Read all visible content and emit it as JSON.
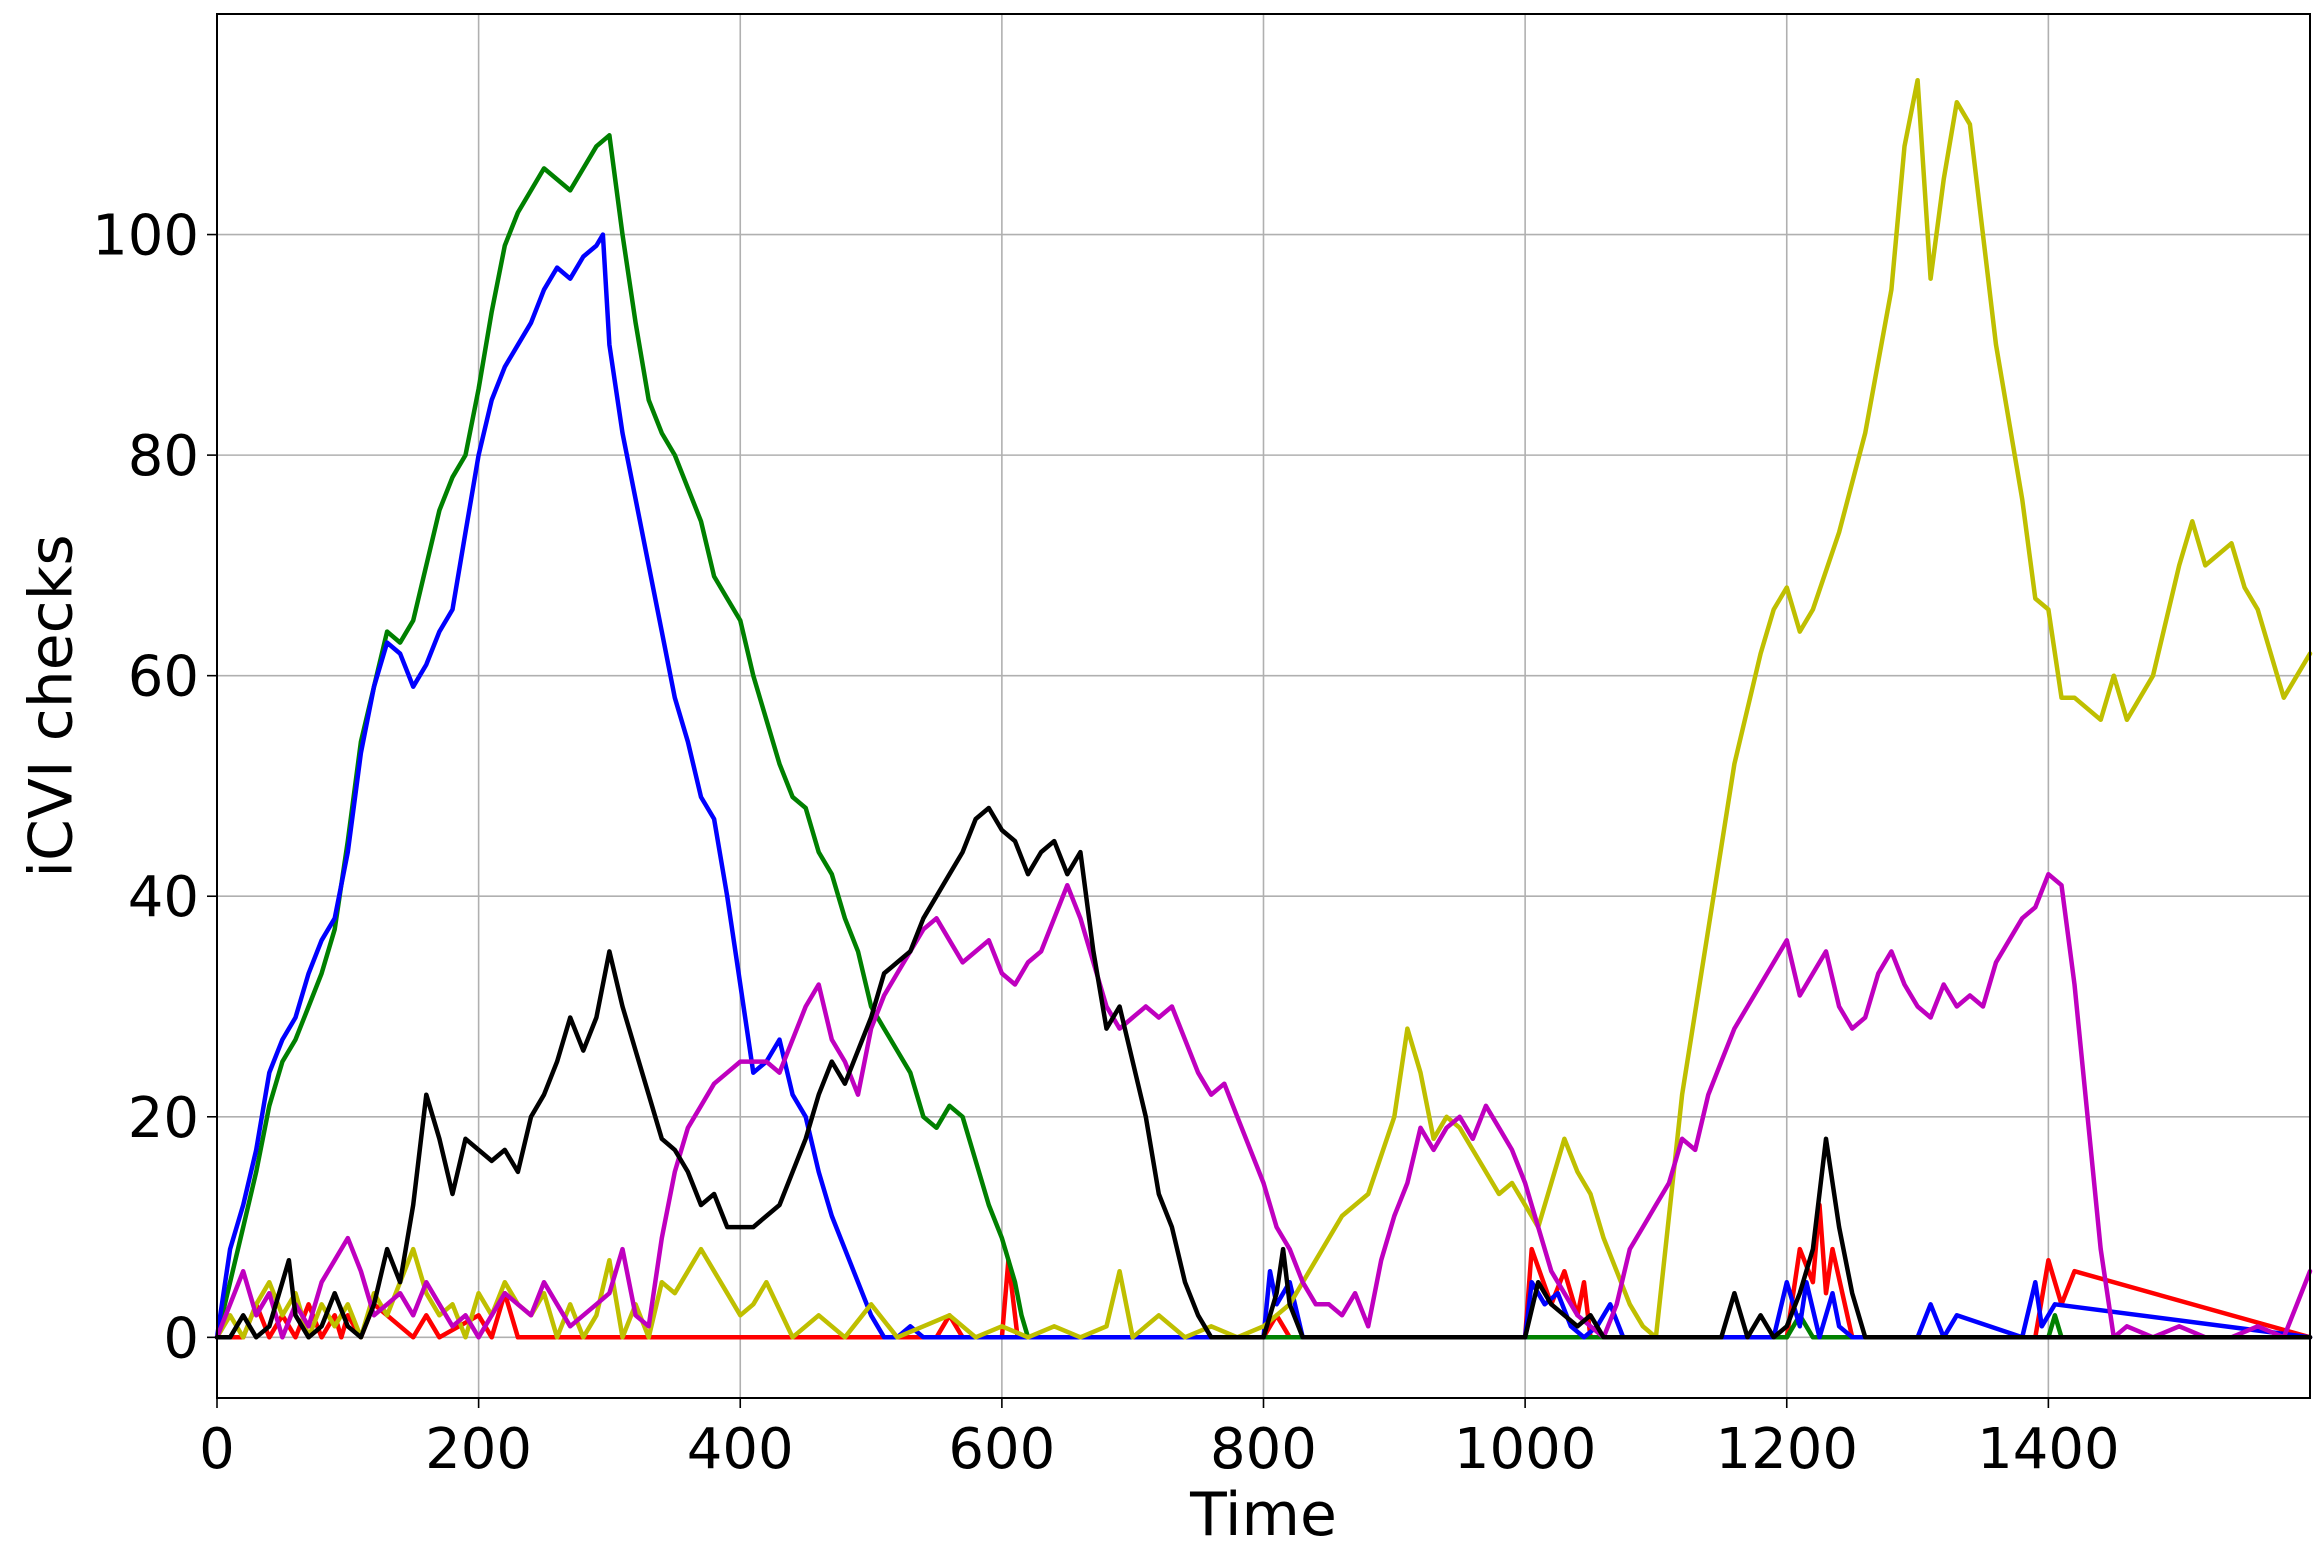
{
  "chart_data": {
    "type": "line",
    "xlabel": "Time",
    "ylabel": "iCVI checks",
    "xlim": [
      0,
      1600
    ],
    "ylim": [
      -5.5,
      120
    ],
    "xticks": [
      0,
      200,
      400,
      600,
      800,
      1000,
      1200,
      1400
    ],
    "yticks": [
      0,
      20,
      40,
      60,
      80,
      100
    ],
    "grid": true,
    "legend": "none",
    "series": [
      {
        "color": "#ff0000",
        "x": [
          0,
          20,
          30,
          40,
          50,
          60,
          70,
          80,
          90,
          95,
          100,
          110,
          120,
          150,
          160,
          170,
          200,
          210,
          220,
          230,
          300,
          400,
          550,
          560,
          570,
          600,
          605,
          612,
          620,
          800,
          810,
          820,
          830,
          1000,
          1005,
          1020,
          1030,
          1040,
          1045,
          1050,
          1060,
          1200,
          1210,
          1220,
          1225,
          1230,
          1235,
          1250,
          1390,
          1400,
          1410,
          1420,
          1600
        ],
        "y": [
          0,
          0,
          3,
          0,
          2,
          0,
          3,
          0,
          2,
          0,
          2,
          0,
          3,
          0,
          2,
          0,
          2,
          0,
          4,
          0,
          0,
          0,
          0,
          2,
          0,
          0,
          7,
          0,
          0,
          0,
          2,
          0,
          0,
          0,
          8,
          3,
          6,
          2,
          5,
          0,
          0,
          0,
          8,
          5,
          12,
          4,
          8,
          0,
          0,
          7,
          3,
          6,
          0
        ]
      },
      {
        "color": "#008000",
        "x": [
          0,
          10,
          20,
          30,
          40,
          50,
          60,
          70,
          80,
          90,
          100,
          110,
          120,
          130,
          140,
          150,
          160,
          170,
          180,
          190,
          200,
          210,
          220,
          230,
          240,
          250,
          260,
          270,
          280,
          290,
          300,
          310,
          320,
          330,
          340,
          350,
          360,
          370,
          380,
          390,
          400,
          410,
          420,
          430,
          440,
          450,
          460,
          470,
          480,
          490,
          500,
          510,
          520,
          530,
          540,
          550,
          560,
          570,
          580,
          590,
          600,
          610,
          615,
          620,
          625,
          800,
          1200,
          1210,
          1220,
          1400,
          1405,
          1410,
          1600
        ],
        "y": [
          0,
          5,
          10,
          15,
          21,
          25,
          27,
          30,
          33,
          37,
          45,
          54,
          59,
          64,
          63,
          65,
          70,
          75,
          78,
          80,
          86,
          93,
          99,
          102,
          104,
          106,
          105,
          104,
          106,
          108,
          109,
          100,
          92,
          85,
          82,
          80,
          77,
          74,
          69,
          67,
          65,
          60,
          56,
          52,
          49,
          48,
          44,
          42,
          38,
          35,
          30,
          28,
          26,
          24,
          20,
          19,
          21,
          20,
          16,
          12,
          9,
          5,
          2,
          0,
          0,
          0,
          0,
          2,
          0,
          0,
          2,
          0,
          0
        ]
      },
      {
        "color": "#0000ff",
        "x": [
          0,
          10,
          20,
          30,
          40,
          50,
          60,
          70,
          80,
          90,
          100,
          110,
          120,
          130,
          140,
          150,
          160,
          170,
          180,
          190,
          200,
          210,
          220,
          230,
          240,
          250,
          260,
          270,
          280,
          290,
          295,
          300,
          310,
          320,
          330,
          340,
          350,
          360,
          370,
          380,
          390,
          400,
          410,
          420,
          430,
          440,
          450,
          460,
          470,
          480,
          490,
          500,
          510,
          520,
          530,
          540,
          600,
          800,
          805,
          810,
          820,
          830,
          1000,
          1005,
          1015,
          1025,
          1035,
          1045,
          1055,
          1065,
          1075,
          1100,
          1190,
          1200,
          1210,
          1215,
          1225,
          1235,
          1240,
          1250,
          1300,
          1310,
          1320,
          1330,
          1380,
          1390,
          1395,
          1405,
          1600
        ],
        "y": [
          0,
          8,
          12,
          17,
          24,
          27,
          29,
          33,
          36,
          38,
          44,
          53,
          59,
          63,
          62,
          59,
          61,
          64,
          66,
          73,
          80,
          85,
          88,
          90,
          92,
          95,
          97,
          96,
          98,
          99,
          100,
          90,
          82,
          76,
          70,
          64,
          58,
          54,
          49,
          47,
          40,
          32,
          24,
          25,
          27,
          22,
          20,
          15,
          11,
          8,
          5,
          2,
          0,
          0,
          1,
          0,
          0,
          0,
          6,
          3,
          5,
          0,
          0,
          5,
          3,
          4,
          1,
          0,
          1,
          3,
          0,
          0,
          0,
          5,
          1,
          5,
          0,
          4,
          1,
          0,
          0,
          3,
          0,
          2,
          0,
          5,
          1,
          3,
          0
        ]
      },
      {
        "color": "#bfbf00",
        "x": [
          0,
          10,
          20,
          30,
          40,
          50,
          60,
          70,
          80,
          90,
          100,
          110,
          120,
          130,
          140,
          150,
          160,
          170,
          180,
          190,
          200,
          210,
          220,
          230,
          240,
          250,
          260,
          270,
          280,
          290,
          300,
          310,
          320,
          330,
          340,
          350,
          360,
          370,
          380,
          390,
          400,
          410,
          420,
          440,
          460,
          480,
          500,
          520,
          540,
          560,
          580,
          600,
          620,
          640,
          660,
          680,
          690,
          700,
          720,
          740,
          760,
          780,
          800,
          820,
          840,
          860,
          880,
          900,
          910,
          920,
          930,
          940,
          950,
          960,
          970,
          980,
          990,
          1000,
          1010,
          1020,
          1030,
          1040,
          1050,
          1060,
          1070,
          1080,
          1090,
          1100,
          1110,
          1120,
          1140,
          1160,
          1180,
          1190,
          1200,
          1210,
          1220,
          1240,
          1260,
          1280,
          1290,
          1300,
          1310,
          1320,
          1330,
          1340,
          1360,
          1380,
          1390,
          1400,
          1410,
          1420,
          1440,
          1450,
          1460,
          1480,
          1500,
          1510,
          1520,
          1530,
          1540,
          1550,
          1560,
          1580,
          1590,
          1600
        ],
        "y": [
          0,
          2,
          0,
          3,
          5,
          2,
          4,
          0,
          3,
          1,
          3,
          0,
          4,
          2,
          5,
          8,
          4,
          2,
          3,
          0,
          4,
          2,
          5,
          3,
          2,
          4,
          0,
          3,
          0,
          2,
          7,
          0,
          3,
          0,
          5,
          4,
          6,
          8,
          6,
          4,
          2,
          3,
          5,
          0,
          2,
          0,
          3,
          0,
          1,
          2,
          0,
          1,
          0,
          1,
          0,
          1,
          6,
          0,
          2,
          0,
          1,
          0,
          1,
          3,
          7,
          11,
          13,
          20,
          28,
          24,
          18,
          20,
          19,
          17,
          15,
          13,
          14,
          12,
          10,
          14,
          18,
          15,
          13,
          9,
          6,
          3,
          1,
          0,
          11,
          22,
          37,
          52,
          62,
          66,
          68,
          64,
          66,
          73,
          82,
          95,
          108,
          114,
          96,
          105,
          112,
          110,
          90,
          76,
          67,
          66,
          58,
          58,
          56,
          60,
          56,
          60,
          70,
          74,
          70,
          71,
          72,
          68,
          66,
          58,
          60,
          62
        ]
      },
      {
        "color": "#bf00bf",
        "x": [
          0,
          10,
          20,
          30,
          40,
          50,
          60,
          70,
          80,
          90,
          100,
          110,
          120,
          130,
          140,
          150,
          160,
          170,
          180,
          190,
          200,
          210,
          220,
          230,
          240,
          250,
          260,
          270,
          280,
          290,
          300,
          310,
          320,
          330,
          340,
          350,
          360,
          370,
          380,
          390,
          400,
          410,
          420,
          430,
          440,
          450,
          460,
          470,
          480,
          490,
          500,
          510,
          520,
          530,
          540,
          550,
          560,
          570,
          580,
          590,
          600,
          610,
          620,
          630,
          640,
          650,
          660,
          670,
          680,
          690,
          700,
          710,
          720,
          730,
          740,
          750,
          760,
          770,
          780,
          790,
          800,
          810,
          820,
          830,
          840,
          850,
          860,
          870,
          880,
          890,
          900,
          910,
          920,
          930,
          940,
          950,
          960,
          970,
          980,
          990,
          1000,
          1010,
          1020,
          1030,
          1040,
          1050,
          1060,
          1070,
          1080,
          1090,
          1100,
          1110,
          1120,
          1130,
          1140,
          1150,
          1160,
          1170,
          1180,
          1190,
          1200,
          1210,
          1220,
          1230,
          1240,
          1250,
          1260,
          1270,
          1280,
          1290,
          1300,
          1310,
          1320,
          1330,
          1340,
          1350,
          1360,
          1370,
          1380,
          1390,
          1400,
          1410,
          1420,
          1430,
          1440,
          1450,
          1460,
          1480,
          1500,
          1520,
          1540,
          1560,
          1580,
          1590,
          1600
        ],
        "y": [
          0,
          3,
          6,
          2,
          4,
          0,
          3,
          1,
          5,
          7,
          9,
          6,
          2,
          3,
          4,
          2,
          5,
          3,
          1,
          2,
          0,
          2,
          4,
          3,
          2,
          5,
          3,
          1,
          2,
          3,
          4,
          8,
          2,
          1,
          9,
          15,
          19,
          21,
          23,
          24,
          25,
          25,
          25,
          24,
          27,
          30,
          32,
          27,
          25,
          22,
          28,
          31,
          33,
          35,
          37,
          38,
          36,
          34,
          35,
          36,
          33,
          32,
          34,
          35,
          38,
          41,
          38,
          34,
          30,
          28,
          29,
          30,
          29,
          30,
          27,
          24,
          22,
          23,
          20,
          17,
          14,
          10,
          8,
          5,
          3,
          3,
          2,
          4,
          1,
          7,
          11,
          14,
          19,
          17,
          19,
          20,
          18,
          21,
          19,
          17,
          14,
          10,
          6,
          4,
          2,
          1,
          0,
          3,
          8,
          10,
          12,
          14,
          18,
          17,
          22,
          25,
          28,
          30,
          32,
          34,
          36,
          31,
          33,
          35,
          30,
          28,
          29,
          33,
          35,
          32,
          30,
          29,
          32,
          30,
          31,
          30,
          34,
          36,
          38,
          39,
          42,
          41,
          32,
          20,
          8,
          0,
          1,
          0,
          1,
          0,
          0,
          1,
          0,
          3,
          6
        ]
      },
      {
        "color": "#000000",
        "x": [
          0,
          10,
          20,
          30,
          40,
          50,
          55,
          60,
          70,
          80,
          90,
          100,
          110,
          120,
          130,
          140,
          150,
          160,
          170,
          180,
          190,
          200,
          210,
          220,
          230,
          240,
          250,
          260,
          270,
          280,
          290,
          300,
          310,
          320,
          330,
          340,
          350,
          360,
          370,
          380,
          390,
          400,
          410,
          420,
          430,
          440,
          450,
          460,
          470,
          480,
          490,
          500,
          510,
          520,
          530,
          540,
          550,
          560,
          570,
          580,
          590,
          600,
          610,
          620,
          630,
          640,
          650,
          660,
          670,
          680,
          690,
          700,
          710,
          720,
          730,
          740,
          750,
          760,
          770,
          800,
          810,
          815,
          820,
          830,
          1000,
          1010,
          1020,
          1030,
          1040,
          1050,
          1060,
          1100,
          1150,
          1160,
          1170,
          1180,
          1190,
          1200,
          1210,
          1220,
          1230,
          1240,
          1250,
          1260,
          1600
        ],
        "y": [
          0,
          0,
          2,
          0,
          1,
          5,
          7,
          2,
          0,
          1,
          4,
          1,
          0,
          3,
          8,
          5,
          12,
          22,
          18,
          13,
          18,
          17,
          16,
          17,
          15,
          20,
          22,
          25,
          29,
          26,
          29,
          35,
          30,
          26,
          22,
          18,
          17,
          15,
          12,
          13,
          10,
          10,
          10,
          11,
          12,
          15,
          18,
          22,
          25,
          23,
          26,
          29,
          33,
          34,
          35,
          38,
          40,
          42,
          44,
          47,
          48,
          46,
          45,
          42,
          44,
          45,
          42,
          44,
          35,
          28,
          30,
          25,
          20,
          13,
          10,
          5,
          2,
          0,
          0,
          0,
          4,
          8,
          3,
          0,
          0,
          5,
          3,
          2,
          1,
          2,
          0,
          0,
          0,
          4,
          0,
          2,
          0,
          1,
          4,
          8,
          18,
          10,
          4,
          0,
          0
        ]
      }
    ]
  }
}
